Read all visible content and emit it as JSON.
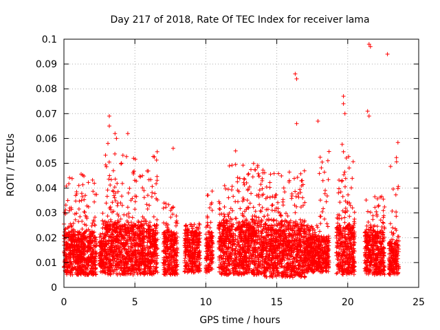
{
  "chart_data": {
    "type": "scatter",
    "title": "Day 217 of 2018, Rate Of TEC Index for receiver lama",
    "xlabel": "GPS time / hours",
    "ylabel": "ROTI / TECUs",
    "xlim": [
      0,
      25
    ],
    "ylim": [
      0,
      0.1
    ],
    "xticks": [
      0,
      5,
      10,
      15,
      20,
      25
    ],
    "yticks": [
      0,
      0.01,
      0.02,
      0.03,
      0.04,
      0.05,
      0.06,
      0.07,
      0.08,
      0.09,
      0.1
    ],
    "xtick_labels": [
      "0",
      "5",
      "10",
      "15",
      "20",
      "25"
    ],
    "ytick_labels": [
      "0",
      "0.01",
      "0.02",
      "0.03",
      "0.04",
      "0.05",
      "0.06",
      "0.07",
      "0.08",
      "0.09",
      "0.1"
    ],
    "grid": true,
    "marker": "+",
    "color": "#ff0000",
    "legend": "none",
    "clusters": [
      {
        "x_range": [
          0.0,
          2.3
        ],
        "y_base": [
          0.005,
          0.022
        ],
        "y_peak": 0.047
      },
      {
        "x_range": [
          2.5,
          2.9
        ],
        "y_base": [
          0.006,
          0.02
        ],
        "y_peak": 0.03
      },
      {
        "x_range": [
          2.9,
          6.6
        ],
        "y_base": [
          0.005,
          0.025
        ],
        "y_peak": 0.055
      },
      {
        "x_range": [
          7.0,
          8.0
        ],
        "y_base": [
          0.005,
          0.022
        ],
        "y_peak": 0.035
      },
      {
        "x_range": [
          8.5,
          9.6
        ],
        "y_base": [
          0.006,
          0.022
        ],
        "y_peak": 0.026
      },
      {
        "x_range": [
          10.0,
          10.5
        ],
        "y_base": [
          0.006,
          0.022
        ],
        "y_peak": 0.039
      },
      {
        "x_range": [
          10.9,
          14.1
        ],
        "y_base": [
          0.005,
          0.026
        ],
        "y_peak": 0.05
      },
      {
        "x_range": [
          14.1,
          17.0
        ],
        "y_base": [
          0.004,
          0.025
        ],
        "y_peak": 0.047
      },
      {
        "x_range": [
          17.0,
          18.0
        ],
        "y_base": [
          0.006,
          0.02
        ],
        "y_peak": 0.025
      },
      {
        "x_range": [
          18.0,
          18.7
        ],
        "y_base": [
          0.006,
          0.02
        ],
        "y_peak": 0.055
      },
      {
        "x_range": [
          19.2,
          20.5
        ],
        "y_base": [
          0.005,
          0.025
        ],
        "y_peak": 0.06
      },
      {
        "x_range": [
          21.2,
          22.6
        ],
        "y_base": [
          0.005,
          0.022
        ],
        "y_peak": 0.038
      },
      {
        "x_range": [
          22.9,
          23.6
        ],
        "y_base": [
          0.005,
          0.018
        ],
        "y_peak": 0.06
      }
    ],
    "outliers": [
      {
        "x": 3.2,
        "y": 0.069
      },
      {
        "x": 3.2,
        "y": 0.065
      },
      {
        "x": 3.1,
        "y": 0.058
      },
      {
        "x": 3.6,
        "y": 0.062
      },
      {
        "x": 3.7,
        "y": 0.06
      },
      {
        "x": 4.5,
        "y": 0.062
      },
      {
        "x": 7.7,
        "y": 0.056
      },
      {
        "x": 12.1,
        "y": 0.055
      },
      {
        "x": 16.3,
        "y": 0.086
      },
      {
        "x": 16.4,
        "y": 0.084
      },
      {
        "x": 16.4,
        "y": 0.066
      },
      {
        "x": 17.9,
        "y": 0.067
      },
      {
        "x": 19.7,
        "y": 0.077
      },
      {
        "x": 19.7,
        "y": 0.074
      },
      {
        "x": 19.8,
        "y": 0.07
      },
      {
        "x": 21.4,
        "y": 0.071
      },
      {
        "x": 21.5,
        "y": 0.069
      },
      {
        "x": 21.5,
        "y": 0.098
      },
      {
        "x": 21.6,
        "y": 0.097
      },
      {
        "x": 22.8,
        "y": 0.094
      }
    ]
  }
}
